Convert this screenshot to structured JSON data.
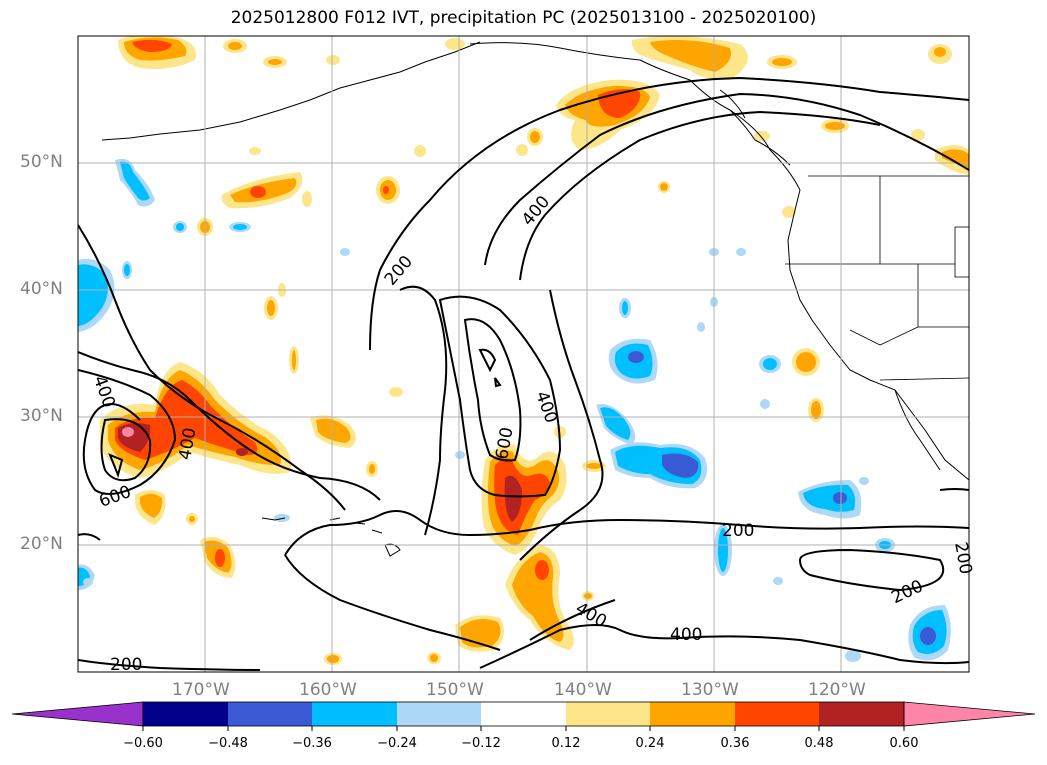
{
  "title": "2025012800 F012 IVT, precipitation PC (2025013100 - 2025020100)",
  "lat_labels": [
    "50°N",
    "40°N",
    "30°N",
    "20°N"
  ],
  "lon_labels": [
    "170°W",
    "160°W",
    "150°W",
    "140°W",
    "130°W",
    "120°W"
  ],
  "ivt_contour_labels": [
    "200",
    "400",
    "400",
    "400",
    "600",
    "600",
    "400",
    "200",
    "200",
    "200",
    "400",
    "400",
    "200"
  ],
  "colorbar": {
    "ticks": [
      "−0.60",
      "−0.48",
      "−0.36",
      "−0.24",
      "−0.12",
      "0.12",
      "0.24",
      "0.36",
      "0.48",
      "0.60"
    ],
    "colors": [
      "#9932cc",
      "#00008b",
      "#3b5bd6",
      "#00bfff",
      "#add8f7",
      "#ffffff",
      "#fde68a",
      "#ffa500",
      "#ff4500",
      "#b22222",
      "#ff85a8"
    ]
  },
  "chart_data": {
    "type": "map",
    "title": "2025012800 F012 IVT, precipitation PC (2025013100 - 2025020100)",
    "contour_levels": [
      200,
      400,
      600
    ],
    "fill_levels": [
      -0.6,
      -0.48,
      -0.36,
      -0.24,
      -0.12,
      0.12,
      0.24,
      0.36,
      0.48,
      0.6
    ],
    "lon_range": [
      "180°W",
      "110°W"
    ],
    "lat_range": [
      "10°N",
      "60°N"
    ],
    "grid": true
  }
}
